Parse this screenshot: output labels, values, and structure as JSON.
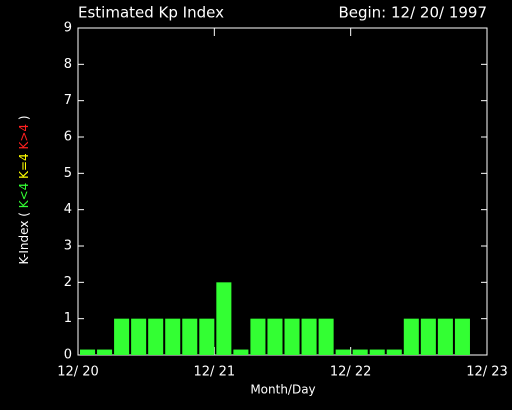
{
  "chart_data": {
    "type": "bar",
    "title": "Estimated Kp Index",
    "subtitle": "Begin: 12/ 20/ 1997",
    "xlabel": "Month/Day",
    "ylabel_parts": [
      {
        "text": "K-Index ( ",
        "color": "#ffffff"
      },
      {
        "text": "K<4",
        "color": "#33ff33"
      },
      {
        "text": " K=4",
        "color": "#ffff00"
      },
      {
        "text": " K>4",
        "color": "#ff2020"
      },
      {
        "text": " )",
        "color": "#ffffff"
      }
    ],
    "values": [
      0.15,
      0.15,
      1,
      1,
      1,
      1,
      1,
      1,
      2,
      0.15,
      1,
      1,
      1,
      1,
      1,
      0.15,
      0.15,
      0.15,
      0.15,
      1,
      1,
      1,
      1
    ],
    "color": "#33ff33",
    "xlim": [
      0,
      24
    ],
    "xticks": [
      {
        "value": 0,
        "label": "12/ 20"
      },
      {
        "value": 8,
        "label": "12/ 21"
      },
      {
        "value": 16,
        "label": "12/ 22"
      },
      {
        "value": 24,
        "label": "12/ 23"
      }
    ],
    "ylim": [
      0,
      9
    ],
    "yticks": [
      0,
      1,
      2,
      3,
      4,
      5,
      6,
      7,
      8,
      9
    ]
  }
}
